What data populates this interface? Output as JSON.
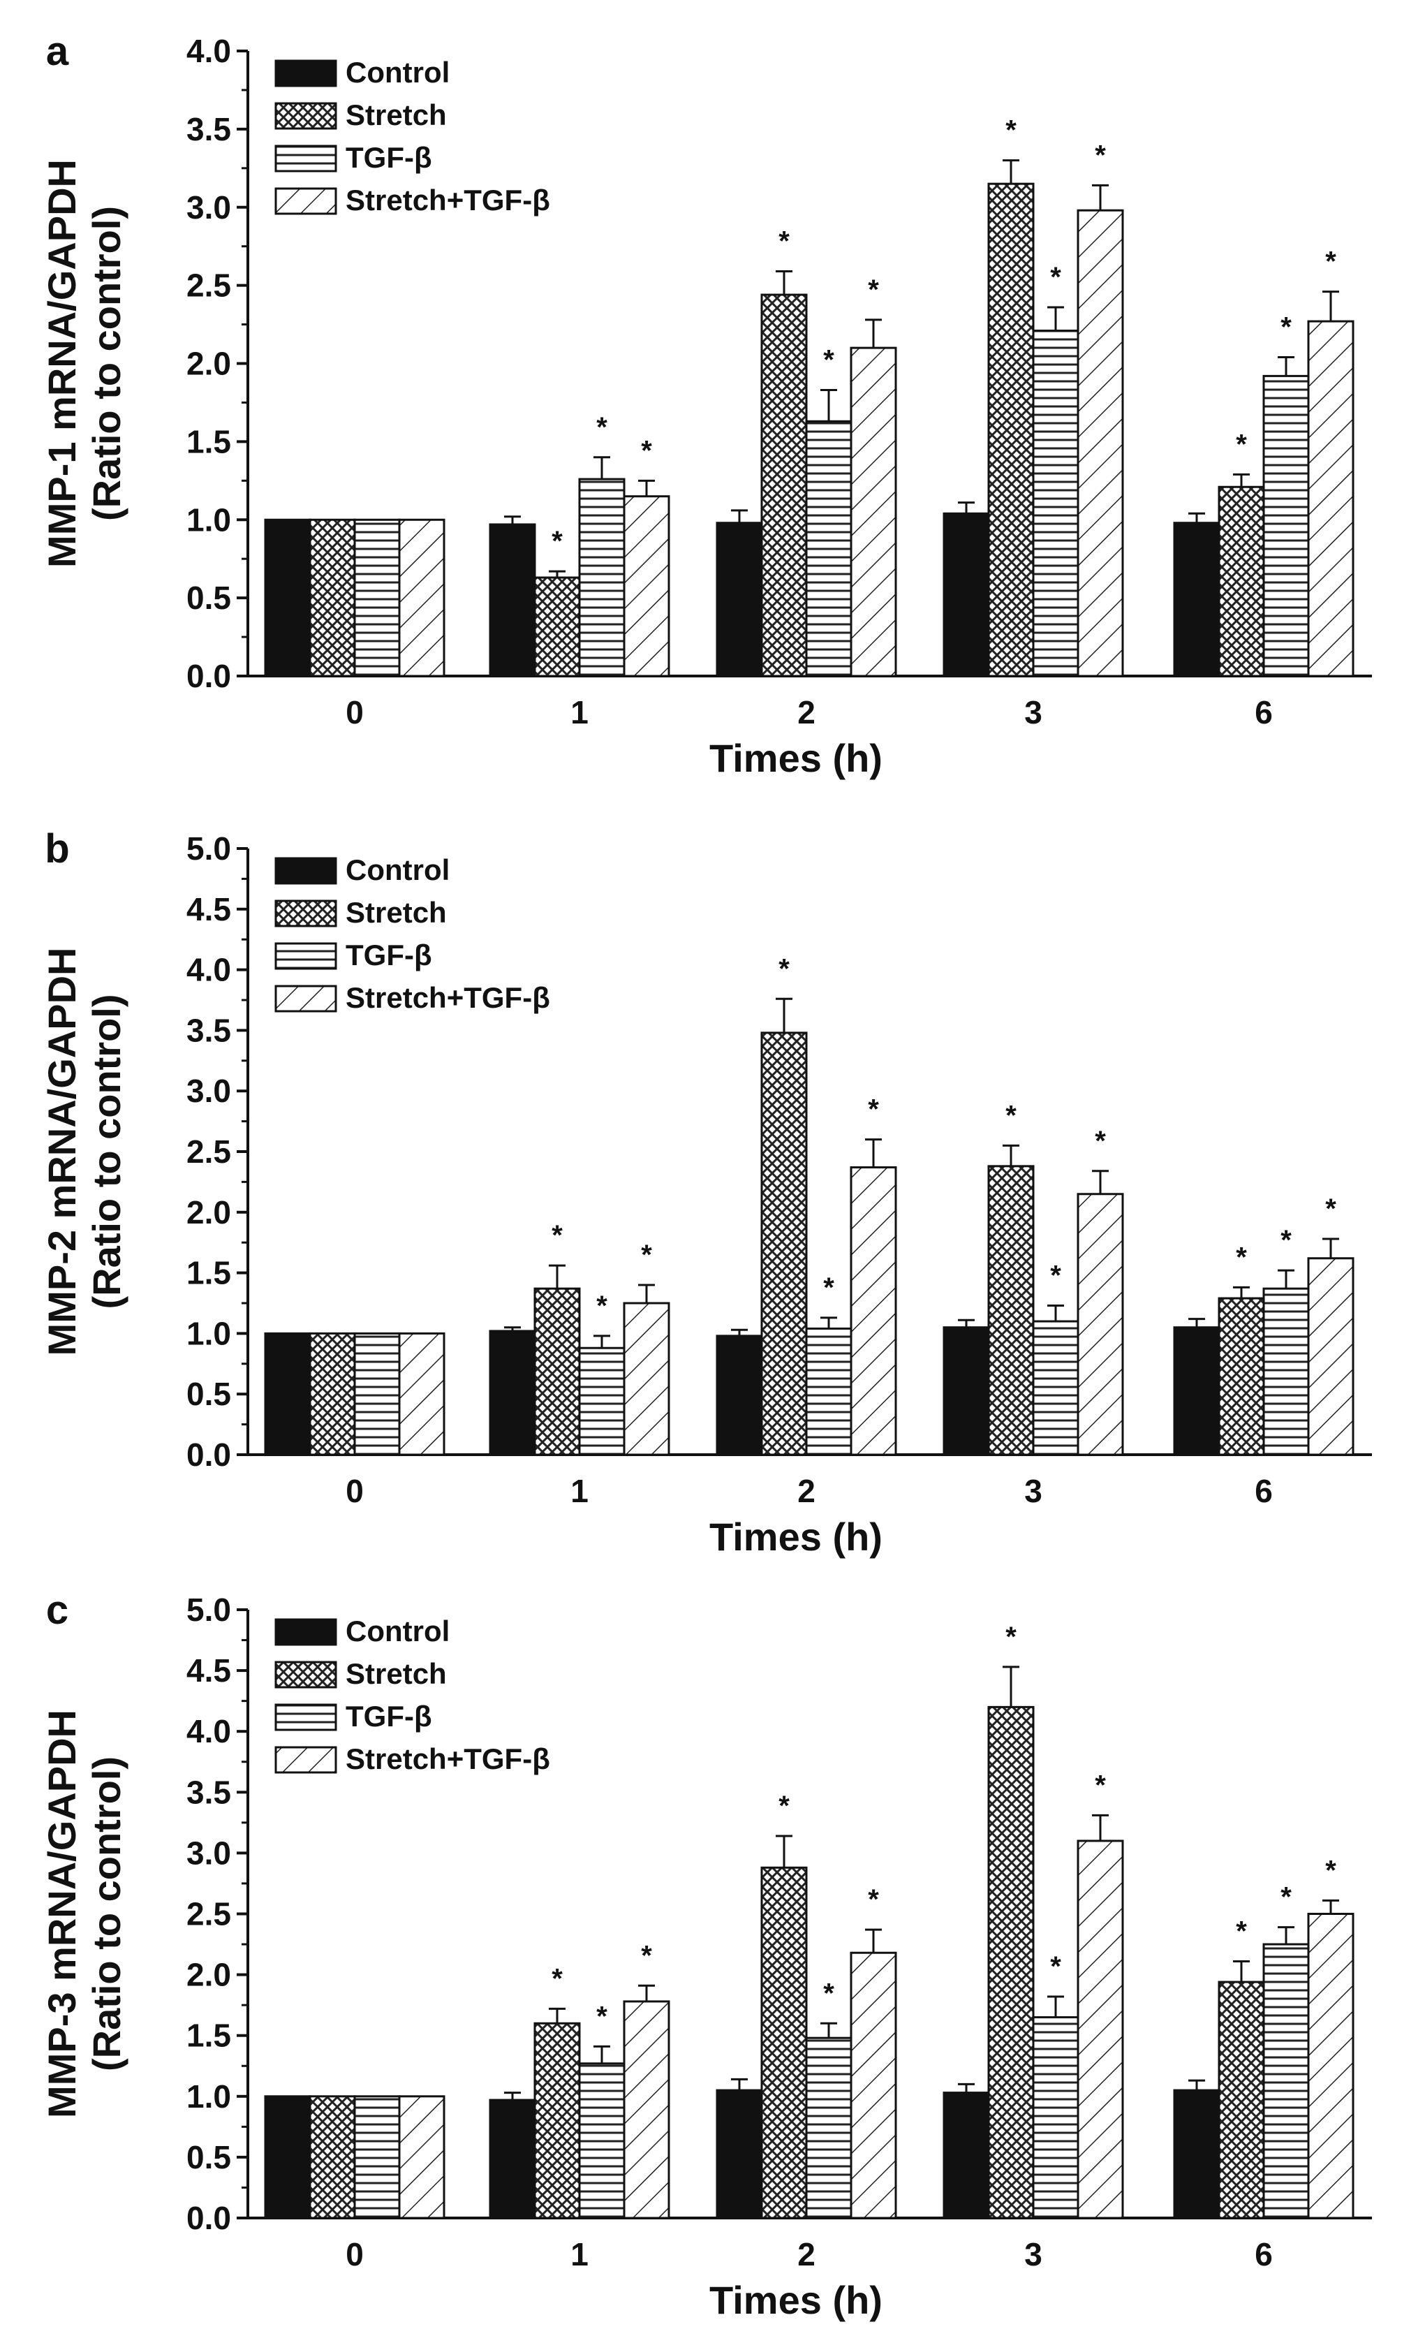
{
  "chart_data": [
    {
      "type": "bar",
      "panel": "a",
      "ylabel_line1": "MMP-1 mRNA/GAPDH",
      "ylabel_line2": "(Ratio to control)",
      "xlabel": "Times (h)",
      "ylim": [
        0,
        4.0
      ],
      "yticks": [
        "0.0",
        "0.5",
        "1.0",
        "1.5",
        "2.0",
        "2.5",
        "3.0",
        "3.5",
        "4.0"
      ],
      "categories": [
        "0",
        "1",
        "2",
        "3",
        "6"
      ],
      "legend": "top-left",
      "series": [
        {
          "name": "Control",
          "pattern": "solid",
          "values": [
            1.0,
            0.97,
            0.98,
            1.04,
            0.98
          ],
          "errors": [
            0,
            0.05,
            0.08,
            0.07,
            0.06
          ],
          "significant": [
            false,
            false,
            false,
            false,
            false
          ]
        },
        {
          "name": "Stretch",
          "pattern": "crosshatch",
          "values": [
            1.0,
            0.63,
            2.44,
            3.15,
            1.21
          ],
          "errors": [
            0,
            0.04,
            0.15,
            0.15,
            0.08
          ],
          "significant": [
            false,
            true,
            true,
            true,
            true
          ]
        },
        {
          "name": "TGF-β",
          "pattern": "horizontal",
          "values": [
            1.0,
            1.26,
            1.63,
            2.21,
            1.92
          ],
          "errors": [
            0,
            0.14,
            0.2,
            0.15,
            0.12
          ],
          "significant": [
            false,
            true,
            true,
            true,
            true
          ]
        },
        {
          "name": "Stretch+TGF-β",
          "pattern": "diagonal",
          "values": [
            1.0,
            1.15,
            2.1,
            2.98,
            2.27
          ],
          "errors": [
            0,
            0.1,
            0.18,
            0.16,
            0.19
          ],
          "significant": [
            false,
            true,
            true,
            true,
            true
          ]
        }
      ]
    },
    {
      "type": "bar",
      "panel": "b",
      "ylabel_line1": "MMP-2 mRNA/GAPDH",
      "ylabel_line2": "(Ratio to control)",
      "xlabel": "Times (h)",
      "ylim": [
        0,
        5.0
      ],
      "yticks": [
        "0.0",
        "0.5",
        "1.0",
        "1.5",
        "2.0",
        "2.5",
        "3.0",
        "3.5",
        "4.0",
        "4.5",
        "5.0"
      ],
      "categories": [
        "0",
        "1",
        "2",
        "3",
        "6"
      ],
      "legend": "top-left",
      "series": [
        {
          "name": "Control",
          "pattern": "solid",
          "values": [
            1.0,
            1.02,
            0.98,
            1.05,
            1.05
          ],
          "errors": [
            0,
            0.03,
            0.05,
            0.06,
            0.07
          ],
          "significant": [
            false,
            false,
            false,
            false,
            false
          ]
        },
        {
          "name": "Stretch",
          "pattern": "crosshatch",
          "values": [
            1.0,
            1.37,
            3.48,
            2.38,
            1.29
          ],
          "errors": [
            0,
            0.19,
            0.28,
            0.17,
            0.09
          ],
          "significant": [
            false,
            true,
            true,
            true,
            true
          ]
        },
        {
          "name": "TGF-β",
          "pattern": "horizontal",
          "values": [
            1.0,
            0.88,
            1.04,
            1.1,
            1.37
          ],
          "errors": [
            0,
            0.1,
            0.09,
            0.13,
            0.15
          ],
          "significant": [
            false,
            true,
            true,
            true,
            true
          ]
        },
        {
          "name": "Stretch+TGF-β",
          "pattern": "diagonal",
          "values": [
            1.0,
            1.25,
            2.37,
            2.15,
            1.62
          ],
          "errors": [
            0,
            0.15,
            0.23,
            0.19,
            0.16
          ],
          "significant": [
            false,
            true,
            true,
            true,
            true
          ]
        }
      ]
    },
    {
      "type": "bar",
      "panel": "c",
      "ylabel_line1": "MMP-3 mRNA/GAPDH",
      "ylabel_line2": "(Ratio to control)",
      "xlabel": "Times (h)",
      "ylim": [
        0,
        5.0
      ],
      "yticks": [
        "0.0",
        "0.5",
        "1.0",
        "1.5",
        "2.0",
        "2.5",
        "3.0",
        "3.5",
        "4.0",
        "4.5",
        "5.0"
      ],
      "categories": [
        "0",
        "1",
        "2",
        "3",
        "6"
      ],
      "legend": "top-left",
      "series": [
        {
          "name": "Control",
          "pattern": "solid",
          "values": [
            1.0,
            0.97,
            1.05,
            1.03,
            1.05
          ],
          "errors": [
            0,
            0.06,
            0.09,
            0.07,
            0.08
          ],
          "significant": [
            false,
            false,
            false,
            false,
            false
          ]
        },
        {
          "name": "Stretch",
          "pattern": "crosshatch",
          "values": [
            1.0,
            1.6,
            2.88,
            4.2,
            1.94
          ],
          "errors": [
            0,
            0.12,
            0.26,
            0.33,
            0.17
          ],
          "significant": [
            false,
            true,
            true,
            true,
            true
          ]
        },
        {
          "name": "TGF-β",
          "pattern": "horizontal",
          "values": [
            1.0,
            1.27,
            1.48,
            1.65,
            2.25
          ],
          "errors": [
            0,
            0.14,
            0.12,
            0.17,
            0.14
          ],
          "significant": [
            false,
            true,
            true,
            true,
            true
          ]
        },
        {
          "name": "Stretch+TGF-β",
          "pattern": "diagonal",
          "values": [
            1.0,
            1.78,
            2.18,
            3.1,
            2.5
          ],
          "errors": [
            0,
            0.13,
            0.19,
            0.21,
            0.11
          ],
          "significant": [
            false,
            true,
            true,
            true,
            true
          ]
        }
      ]
    }
  ],
  "significance_marker": "*"
}
